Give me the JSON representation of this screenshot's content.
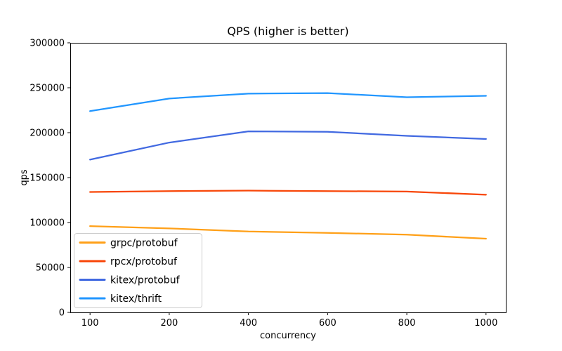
{
  "figure": {
    "background": "#ffffff",
    "text_color": "#000000",
    "spine_color": "#000000",
    "legend_border_color": "#cccccc",
    "legend_background": "rgba(255,255,255,0.8)"
  },
  "chart_data": {
    "type": "line",
    "title": "QPS (higher is better)",
    "xlabel": "concurrency",
    "ylabel": "qps",
    "x": [
      100,
      200,
      400,
      600,
      800,
      1000
    ],
    "x_tick_labels": [
      "100",
      "200",
      "400",
      "600",
      "800",
      "1000"
    ],
    "x_spacing": "even-categorical",
    "ylim": [
      0,
      300000
    ],
    "yticks": [
      0,
      50000,
      100000,
      150000,
      200000,
      250000,
      300000
    ],
    "grid": false,
    "markers": false,
    "legend_position": "lower-left",
    "series": [
      {
        "name": "grpc/protobuf",
        "color": "#ffa018",
        "values": [
          96000,
          93500,
          90000,
          88500,
          86500,
          82000
        ]
      },
      {
        "name": "rpcx/protobuf",
        "color": "#f84608",
        "values": [
          134000,
          135000,
          135500,
          135000,
          134500,
          131000
        ]
      },
      {
        "name": "kitex/protobuf",
        "color": "#4169e1",
        "values": [
          170000,
          189000,
          201500,
          201000,
          196500,
          193000
        ]
      },
      {
        "name": "kitex/thrift",
        "color": "#2196ff",
        "values": [
          224000,
          238000,
          243500,
          244000,
          239500,
          241000
        ]
      }
    ]
  }
}
